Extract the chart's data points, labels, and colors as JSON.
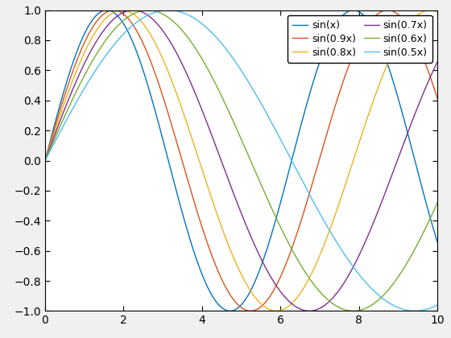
{
  "title": "",
  "xlim": [
    0,
    10
  ],
  "ylim": [
    -1,
    1
  ],
  "lines": [
    {
      "freq": 1.0,
      "label": "sin(x)",
      "color": "#0072BD"
    },
    {
      "freq": 0.9,
      "label": "sin(0.9x)",
      "color": "#D95319"
    },
    {
      "freq": 0.8,
      "label": "sin(0.8x)",
      "color": "#EDB120"
    },
    {
      "freq": 0.7,
      "label": "sin(0.7x)",
      "color": "#7E2F8E"
    },
    {
      "freq": 0.6,
      "label": "sin(0.6x)",
      "color": "#77AC30"
    },
    {
      "freq": 0.5,
      "label": "sin(0.5x)",
      "color": "#4DBEEE"
    }
  ],
  "xticks": [
    0,
    2,
    4,
    6,
    8,
    10
  ],
  "yticks": [
    -1,
    -0.8,
    -0.6,
    -0.4,
    -0.2,
    0,
    0.2,
    0.4,
    0.6,
    0.8,
    1.0
  ],
  "legend_fontsize": 9,
  "tick_fontsize": 10,
  "linewidth": 1.0,
  "figsize": [
    5.6,
    4.2
  ],
  "dpi": 100,
  "bg_color": "#f0f0f0",
  "axes_bg": "#ffffff"
}
